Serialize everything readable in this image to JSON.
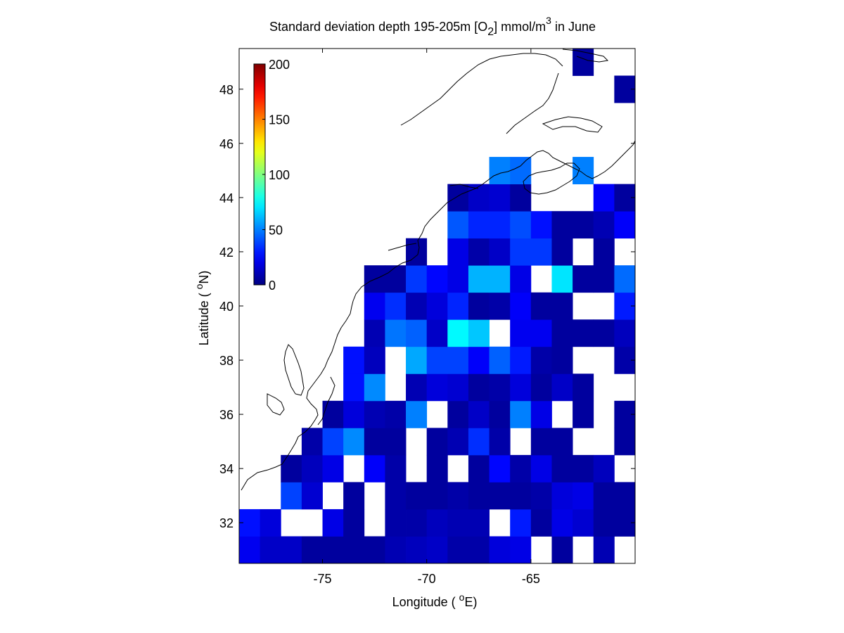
{
  "chart_data": {
    "type": "heatmap",
    "title": {
      "prefix": "Standard deviation depth 195-205m [O",
      "sub": "2",
      "middle": "] mmol/m",
      "sup": "3",
      "suffix": " in June"
    },
    "xlabel": {
      "prefix": "Longitude ( ",
      "sup": "o",
      "suffix": "E)"
    },
    "ylabel": {
      "prefix": "Latitude ( ",
      "sup": "o",
      "suffix": "N)"
    },
    "xlim": [
      -79,
      -60
    ],
    "ylim": [
      30.5,
      49.5
    ],
    "xticks": [
      -75,
      -70,
      -65
    ],
    "xtick_labels": [
      "-75",
      "-70",
      "-65"
    ],
    "yticks": [
      32,
      34,
      36,
      38,
      40,
      42,
      44,
      46,
      48
    ],
    "ytick_labels": [
      "32",
      "34",
      "36",
      "38",
      "40",
      "42",
      "44",
      "46",
      "48"
    ],
    "colorbar": {
      "colormap": "jet",
      "range": [
        0,
        200
      ],
      "ticks": [
        0,
        50,
        100,
        150,
        200
      ],
      "tick_labels": [
        "0",
        "50",
        "100",
        "150",
        "200"
      ],
      "placement": "inside top-left"
    },
    "cell_size_deg": 1,
    "row_lat_min": [
      30.5,
      31.5,
      32.5,
      33.5,
      34.5,
      35.5,
      36.5,
      37.5,
      38.5,
      39.5,
      40.5,
      41.5,
      42.5,
      43.5,
      44.5,
      45.5,
      46.5,
      47.5,
      48.5
    ],
    "col_lon_min": -79,
    "rows": [
      [
        22,
        14,
        14,
        6,
        6,
        6,
        6,
        10,
        12,
        14,
        8,
        8,
        18,
        20,
        null,
        6,
        null,
        10,
        null
      ],
      [
        28,
        18,
        null,
        null,
        20,
        6,
        null,
        8,
        8,
        12,
        10,
        10,
        null,
        30,
        6,
        20,
        16,
        6,
        6
      ],
      [
        null,
        null,
        38,
        16,
        null,
        6,
        null,
        8,
        6,
        6,
        8,
        6,
        6,
        6,
        8,
        18,
        20,
        6,
        6
      ],
      [
        null,
        null,
        6,
        12,
        20,
        null,
        24,
        8,
        null,
        6,
        null,
        6,
        26,
        8,
        20,
        6,
        6,
        12,
        null
      ],
      [
        null,
        null,
        null,
        8,
        38,
        52,
        6,
        6,
        null,
        6,
        10,
        34,
        8,
        null,
        6,
        6,
        null,
        null,
        6
      ],
      [
        null,
        null,
        null,
        null,
        6,
        18,
        10,
        8,
        50,
        null,
        6,
        14,
        6,
        50,
        20,
        null,
        6,
        null,
        6
      ],
      [
        null,
        null,
        null,
        null,
        null,
        28,
        52,
        null,
        10,
        18,
        16,
        6,
        8,
        18,
        6,
        14,
        6,
        null,
        null
      ],
      [
        null,
        null,
        null,
        null,
        null,
        28,
        12,
        null,
        58,
        38,
        38,
        24,
        44,
        30,
        8,
        6,
        null,
        null,
        8
      ],
      [
        null,
        null,
        null,
        null,
        null,
        null,
        10,
        48,
        44,
        14,
        74,
        64,
        null,
        22,
        22,
        6,
        6,
        6,
        12
      ],
      [
        null,
        null,
        null,
        null,
        null,
        null,
        22,
        34,
        10,
        18,
        32,
        6,
        8,
        24,
        6,
        6,
        null,
        null,
        30
      ],
      [
        null,
        null,
        null,
        null,
        null,
        null,
        6,
        6,
        36,
        26,
        20,
        60,
        60,
        20,
        null,
        70,
        6,
        6,
        46
      ],
      [
        null,
        null,
        null,
        null,
        null,
        null,
        null,
        null,
        6,
        null,
        20,
        8,
        14,
        36,
        36,
        6,
        null,
        6,
        null
      ],
      [
        null,
        null,
        null,
        null,
        null,
        null,
        null,
        null,
        null,
        null,
        42,
        32,
        32,
        40,
        28,
        6,
        6,
        10,
        24
      ],
      [
        null,
        null,
        null,
        null,
        null,
        null,
        null,
        null,
        null,
        null,
        6,
        14,
        16,
        6,
        null,
        null,
        null,
        24,
        6
      ],
      [
        null,
        null,
        null,
        null,
        null,
        null,
        null,
        null,
        null,
        null,
        null,
        null,
        50,
        46,
        null,
        null,
        50,
        null,
        null
      ],
      [
        null,
        null,
        null,
        null,
        null,
        null,
        null,
        null,
        null,
        null,
        null,
        null,
        null,
        null,
        null,
        null,
        null,
        null,
        null
      ],
      [
        null,
        null,
        null,
        null,
        null,
        null,
        null,
        null,
        null,
        null,
        null,
        null,
        null,
        null,
        null,
        null,
        null,
        null,
        null
      ],
      [
        null,
        null,
        null,
        null,
        null,
        null,
        null,
        null,
        null,
        null,
        null,
        null,
        null,
        null,
        null,
        null,
        null,
        null,
        6
      ],
      [
        null,
        null,
        null,
        null,
        null,
        null,
        null,
        null,
        null,
        null,
        null,
        null,
        null,
        null,
        null,
        null,
        6,
        null,
        null
      ]
    ]
  }
}
